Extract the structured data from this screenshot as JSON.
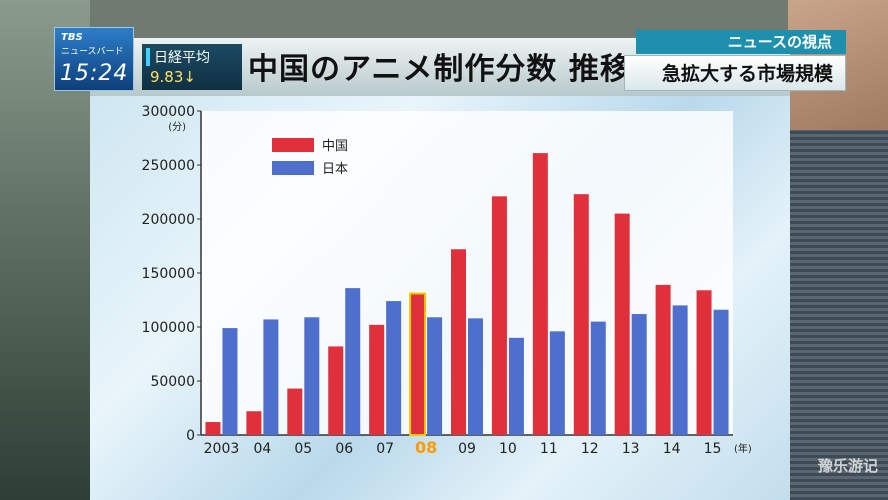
{
  "overlay": {
    "brand": "TBS",
    "program": "ニュースバード",
    "clock": "15:24",
    "ticker_label": "日経平均",
    "ticker_value": "9.83↓",
    "news_tag": "ニュースの視点",
    "news_headline": "急拡大する市場規模",
    "watermark": "豫乐游记"
  },
  "chart_data": {
    "type": "bar",
    "title": "中国のアニメ制作分数 推移",
    "ylabel": "(分)",
    "xlabel": "(年)",
    "ylim": [
      0,
      300000
    ],
    "yticks": [
      0,
      50000,
      100000,
      150000,
      200000,
      250000,
      300000
    ],
    "grid": false,
    "legend_position": "top-left",
    "categories": [
      "2003",
      "04",
      "05",
      "06",
      "07",
      "08",
      "09",
      "10",
      "11",
      "12",
      "13",
      "14",
      "15"
    ],
    "highlight_category": "08",
    "series": [
      {
        "name": "中国",
        "color": "#e0303c",
        "values": [
          12000,
          22000,
          43000,
          82000,
          102000,
          131000,
          172000,
          221000,
          261000,
          223000,
          205000,
          139000,
          134000
        ]
      },
      {
        "name": "日本",
        "color": "#4f6fcc",
        "values": [
          99000,
          107000,
          109000,
          136000,
          124000,
          109000,
          108000,
          90000,
          96000,
          105000,
          112000,
          120000,
          116000
        ]
      }
    ]
  }
}
